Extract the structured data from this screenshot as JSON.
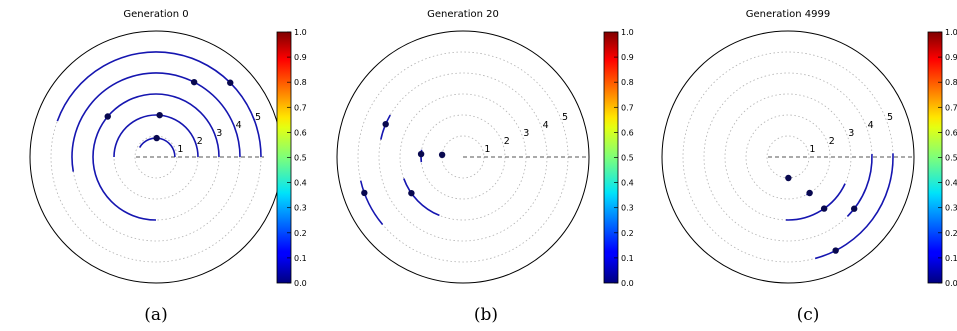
{
  "chart_data": [
    {
      "type": "polar",
      "title": "Generation 0",
      "panel_label": "(a)",
      "ring_labels": [
        "1",
        "2",
        "3",
        "4",
        "5"
      ],
      "r_max": 6,
      "grid": true,
      "arcs": [
        {
          "r": 0.9,
          "start_deg": 0,
          "end_deg": 150,
          "point_deg": 88
        },
        {
          "r": 2.0,
          "start_deg": 0,
          "end_deg": 180,
          "point_deg": 85
        },
        {
          "r": 3.0,
          "start_deg": 0,
          "end_deg": 270,
          "point_deg": 140
        },
        {
          "r": 4.0,
          "start_deg": 0,
          "end_deg": 190,
          "point_deg": 63
        },
        {
          "r": 5.0,
          "start_deg": 0,
          "end_deg": 160,
          "point_deg": 45
        }
      ],
      "colorbar": {
        "min": 0.0,
        "max": 1.0,
        "ticks": [
          "0.0",
          "0.1",
          "0.2",
          "0.3",
          "0.4",
          "0.5",
          "0.6",
          "0.7",
          "0.8",
          "0.9",
          "1.0"
        ]
      }
    },
    {
      "type": "polar",
      "title": "Generation 20",
      "panel_label": "(b)",
      "ring_labels": [
        "1",
        "2",
        "3",
        "4",
        "5"
      ],
      "r_max": 6,
      "grid": true,
      "arcs": [
        {
          "r": 1.0,
          "start_deg": 171,
          "end_deg": 177,
          "point_deg": 174
        },
        {
          "r": 2.0,
          "start_deg": 170,
          "end_deg": 187,
          "point_deg": 176
        },
        {
          "r": 3.0,
          "start_deg": 200,
          "end_deg": 248,
          "point_deg": 215
        },
        {
          "r": 4.0,
          "start_deg": 150,
          "end_deg": 168,
          "point_deg": 157
        },
        {
          "r": 5.0,
          "start_deg": 193,
          "end_deg": 220,
          "point_deg": 200
        }
      ],
      "colorbar": {
        "min": 0.0,
        "max": 1.0,
        "ticks": [
          "0.0",
          "0.1",
          "0.2",
          "0.3",
          "0.4",
          "0.5",
          "0.6",
          "0.7",
          "0.8",
          "0.9",
          "1.0"
        ]
      }
    },
    {
      "type": "polar",
      "title": "Generation 4999",
      "panel_label": "(c)",
      "ring_labels": [
        "1",
        "2",
        "3",
        "4",
        "5"
      ],
      "r_max": 6,
      "grid": true,
      "arcs": [
        {
          "r": 1.0,
          "start_deg": 271,
          "end_deg": 272,
          "point_deg": 271
        },
        {
          "r": 2.0,
          "start_deg": 296,
          "end_deg": 305,
          "point_deg": 301
        },
        {
          "r": 3.0,
          "start_deg": 268,
          "end_deg": 335,
          "point_deg": 305
        },
        {
          "r": 4.0,
          "start_deg": 315,
          "end_deg": 362,
          "point_deg": 322
        },
        {
          "r": 5.0,
          "start_deg": 285,
          "end_deg": 362,
          "point_deg": 297
        }
      ],
      "colorbar": {
        "min": 0.0,
        "max": 1.0,
        "ticks": [
          "0.0",
          "0.1",
          "0.2",
          "0.3",
          "0.4",
          "0.5",
          "0.6",
          "0.7",
          "0.8",
          "0.9",
          "1.0"
        ]
      }
    }
  ],
  "colors": {
    "arc": "#1515b0",
    "point": "#08084f",
    "grid": "#b0b0b0",
    "axis": "#555555"
  }
}
